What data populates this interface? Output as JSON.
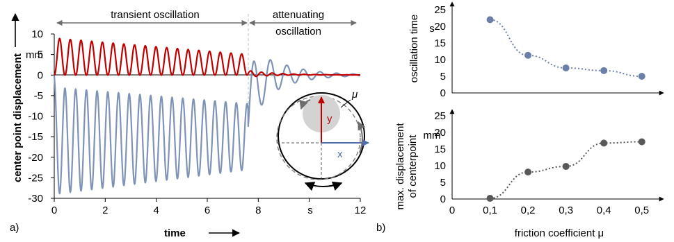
{
  "figure": {
    "panel_a_label": "a)",
    "panel_b_label": "b)"
  },
  "chart_data": [
    {
      "type": "line",
      "panel": "a)",
      "xlabel": "time",
      "ylabel": "center point displacement",
      "x_unit": "s",
      "y_unit": "mm",
      "xlim": [
        0,
        12
      ],
      "ylim": [
        -30,
        10
      ],
      "x_ticks": [
        0,
        2,
        4,
        6,
        8,
        12
      ],
      "y_ticks": [
        10,
        5,
        0,
        -5,
        -10,
        -15,
        -20,
        -25,
        -30
      ],
      "grid": false,
      "annotations": {
        "phase1": "transient oscillation",
        "phase2_line1": "attenuating",
        "phase2_line2": "oscillation",
        "phase_boundary_x": 7.6
      },
      "series": [
        {
          "color": "#c00000",
          "description_params": {
            "transient": {
              "t_end": 7.6,
              "period": 0.42,
              "peak_start": 9,
              "peak_end": 5,
              "trough": 0
            },
            "decay": {
              "period": 0.42,
              "amp_start": 1.0,
              "decay_rate": 1.0,
              "offset": 0.3
            }
          }
        },
        {
          "color": "#7f93b7",
          "description_params": {
            "transient": {
              "t_end": 7.6,
              "period": 0.42,
              "trough_start": -29,
              "trough_end": -23,
              "peak_start": -3,
              "peak_end": -7
            },
            "decay": {
              "period": 0.65,
              "amp_start": 9,
              "decay_rate": 0.85,
              "rise": -8
            }
          }
        }
      ],
      "inset": {
        "labels": {
          "mu": "μ",
          "y": "y",
          "x": "x"
        },
        "colors": {
          "y_axis": "#c00000",
          "x_axis": "#4f6fad",
          "ball": "#d3d3d3"
        }
      }
    },
    {
      "type": "scatter",
      "panel": "b) top",
      "ylabel": "oscillation time",
      "y_unit": "s",
      "ylim": [
        0,
        25
      ],
      "y_ticks": [
        0,
        5,
        10,
        15,
        20,
        25
      ],
      "xlim": [
        0,
        0.5
      ],
      "color": "#6b7fa8",
      "x": [
        0.1,
        0.2,
        0.3,
        0.4,
        0.5
      ],
      "y": [
        22,
        11.3,
        7.5,
        6.7,
        5
      ]
    },
    {
      "type": "scatter",
      "panel": "b) bottom",
      "ylabel_line1": "max. displacement",
      "ylabel_line2": "of centerpoint",
      "xlabel": "friction coefficient μ",
      "y_unit": "mm",
      "ylim": [
        0,
        25
      ],
      "y_ticks": [
        0,
        5,
        10,
        15,
        20,
        25
      ],
      "x_ticks": [
        "0",
        "0,1",
        "0,2",
        "0,3",
        "0,4",
        "0,5"
      ],
      "xlim": [
        0,
        0.5
      ],
      "color": "#595959",
      "x": [
        0.1,
        0.2,
        0.3,
        0.4,
        0.5
      ],
      "y": [
        0.2,
        8.1,
        9.8,
        16.8,
        17.2
      ]
    }
  ]
}
